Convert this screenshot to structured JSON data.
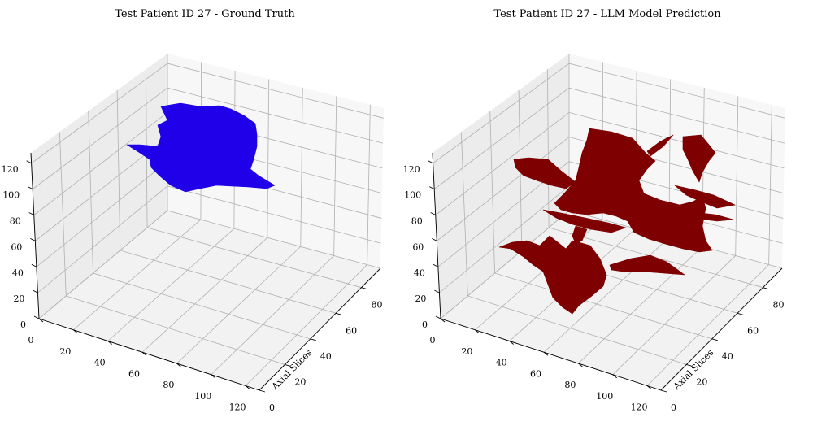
{
  "chart_data": [
    {
      "type": "3d-voxel",
      "title": "Test Patient ID 27 - Ground Truth",
      "xlabel": "",
      "ylabel": "Axial Slices",
      "zlabel": "",
      "x_ticks": [
        "0",
        "20",
        "40",
        "60",
        "80",
        "100",
        "120"
      ],
      "y_ticks": [
        "0",
        "20",
        "40",
        "60",
        "80"
      ],
      "z_ticks": [
        "0",
        "20",
        "40",
        "60",
        "80",
        "100",
        "120"
      ],
      "xlim": [
        0,
        128
      ],
      "ylim": [
        0,
        95
      ],
      "zlim": [
        0,
        128
      ],
      "grid": true,
      "color": "#1f00e8"
    },
    {
      "type": "3d-voxel",
      "title": "Test Patient ID 27 - LLM Model Prediction",
      "xlabel": "",
      "ylabel": "Axial Slices",
      "zlabel": "",
      "x_ticks": [
        "0",
        "20",
        "40",
        "60",
        "80",
        "100",
        "120"
      ],
      "y_ticks": [
        "0",
        "20",
        "40",
        "60",
        "80"
      ],
      "z_ticks": [
        "0",
        "20",
        "40",
        "60",
        "80",
        "100",
        "120"
      ],
      "xlim": [
        0,
        128
      ],
      "ylim": [
        0,
        95
      ],
      "zlim": [
        0,
        128
      ],
      "grid": true,
      "color": "#7f0000"
    }
  ]
}
